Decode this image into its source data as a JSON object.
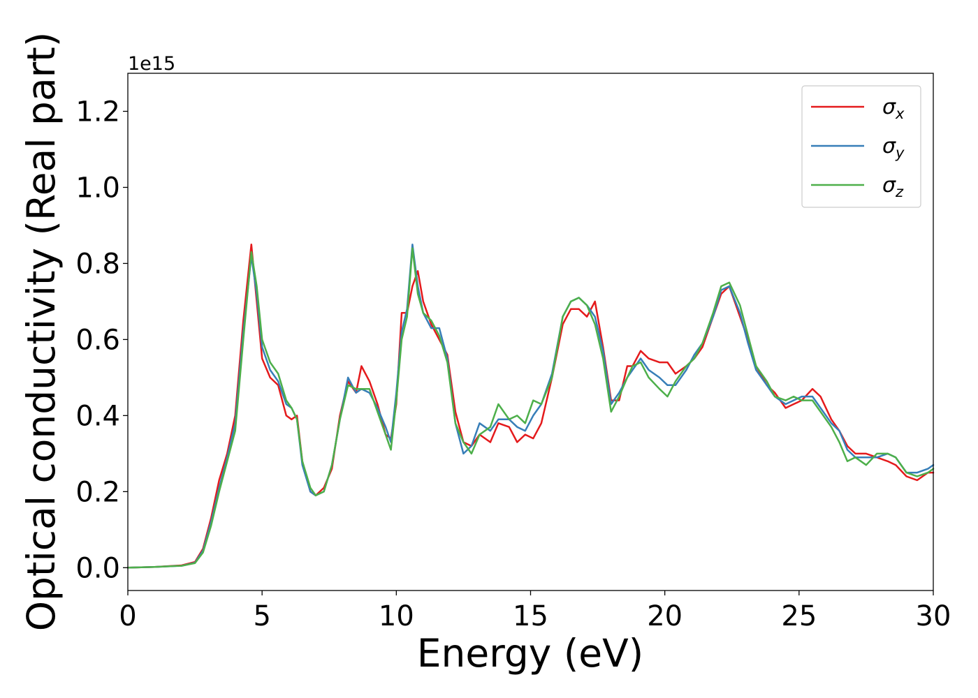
{
  "chart_data": {
    "type": "line",
    "xlabel": "Energy (eV)",
    "ylabel": "Optical conductivity (Real part)",
    "y_offset_label": "1e15",
    "xlim": [
      0,
      30
    ],
    "ylim": [
      -0.06,
      1.3
    ],
    "xticks": [
      0,
      5,
      10,
      15,
      20,
      25,
      30
    ],
    "xtick_labels": [
      "0",
      "5",
      "10",
      "15",
      "20",
      "25",
      "30"
    ],
    "yticks": [
      0.0,
      0.2,
      0.4,
      0.6,
      0.8,
      1.0,
      1.2
    ],
    "ytick_labels": [
      "0.0",
      "0.2",
      "0.4",
      "0.6",
      "0.8",
      "1.0",
      "1.2"
    ],
    "grid": false,
    "legend_position": "top-right",
    "series": [
      {
        "name": "σx",
        "symbol": "σ",
        "subscript": "x",
        "color": "#e41a1c",
        "x": [
          0,
          1,
          2,
          2.5,
          2.8,
          3.1,
          3.4,
          3.7,
          4.0,
          4.3,
          4.6,
          4.8,
          5.0,
          5.3,
          5.6,
          5.9,
          6.1,
          6.3,
          6.5,
          6.8,
          7.0,
          7.3,
          7.6,
          7.9,
          8.2,
          8.5,
          8.7,
          9.0,
          9.3,
          9.6,
          9.8,
          10.0,
          10.2,
          10.4,
          10.6,
          10.8,
          11.0,
          11.3,
          11.6,
          11.9,
          12.2,
          12.5,
          12.8,
          13.1,
          13.5,
          13.8,
          14.2,
          14.5,
          14.8,
          15.1,
          15.4,
          15.8,
          16.2,
          16.5,
          16.8,
          17.1,
          17.4,
          17.7,
          18.0,
          18.3,
          18.6,
          18.8,
          19.1,
          19.4,
          19.8,
          20.1,
          20.4,
          20.8,
          21.1,
          21.4,
          21.8,
          22.1,
          22.4,
          22.8,
          23.1,
          23.4,
          23.8,
          24.1,
          24.5,
          24.8,
          25.1,
          25.5,
          25.8,
          26.2,
          26.5,
          26.8,
          27.1,
          27.5,
          27.9,
          28.3,
          28.6,
          29.0,
          29.4,
          29.8,
          30.0
        ],
        "y": [
          0.0,
          0.002,
          0.006,
          0.015,
          0.05,
          0.13,
          0.23,
          0.3,
          0.4,
          0.65,
          0.85,
          0.7,
          0.55,
          0.5,
          0.48,
          0.4,
          0.39,
          0.4,
          0.28,
          0.2,
          0.19,
          0.21,
          0.26,
          0.4,
          0.49,
          0.46,
          0.53,
          0.49,
          0.43,
          0.35,
          0.34,
          0.43,
          0.67,
          0.67,
          0.74,
          0.78,
          0.7,
          0.64,
          0.6,
          0.56,
          0.41,
          0.33,
          0.32,
          0.35,
          0.33,
          0.38,
          0.37,
          0.33,
          0.35,
          0.34,
          0.38,
          0.5,
          0.64,
          0.68,
          0.68,
          0.66,
          0.7,
          0.58,
          0.44,
          0.44,
          0.53,
          0.53,
          0.57,
          0.55,
          0.54,
          0.54,
          0.51,
          0.53,
          0.55,
          0.58,
          0.66,
          0.72,
          0.74,
          0.66,
          0.6,
          0.53,
          0.48,
          0.46,
          0.42,
          0.43,
          0.44,
          0.47,
          0.45,
          0.39,
          0.36,
          0.32,
          0.3,
          0.3,
          0.29,
          0.28,
          0.27,
          0.24,
          0.23,
          0.25,
          0.25
        ]
      },
      {
        "name": "σy",
        "symbol": "σ",
        "subscript": "y",
        "color": "#377eb8",
        "x": [
          0,
          1,
          2,
          2.5,
          2.8,
          3.1,
          3.4,
          3.7,
          4.0,
          4.3,
          4.6,
          4.8,
          5.0,
          5.3,
          5.6,
          5.9,
          6.1,
          6.3,
          6.5,
          6.8,
          7.0,
          7.3,
          7.6,
          7.9,
          8.2,
          8.5,
          8.7,
          9.0,
          9.3,
          9.6,
          9.8,
          10.0,
          10.2,
          10.4,
          10.6,
          10.8,
          11.0,
          11.3,
          11.6,
          11.9,
          12.2,
          12.5,
          12.8,
          13.1,
          13.5,
          13.8,
          14.2,
          14.5,
          14.8,
          15.1,
          15.4,
          15.8,
          16.2,
          16.5,
          16.8,
          17.1,
          17.4,
          17.7,
          18.0,
          18.3,
          18.6,
          18.8,
          19.1,
          19.4,
          19.8,
          20.1,
          20.4,
          20.8,
          21.1,
          21.4,
          21.8,
          22.1,
          22.4,
          22.8,
          23.1,
          23.4,
          23.8,
          24.1,
          24.5,
          24.8,
          25.1,
          25.5,
          25.8,
          26.2,
          26.5,
          26.8,
          27.1,
          27.5,
          27.9,
          28.3,
          28.6,
          29.0,
          29.4,
          29.8,
          30.0
        ],
        "y": [
          0.0,
          0.002,
          0.005,
          0.013,
          0.045,
          0.12,
          0.21,
          0.29,
          0.38,
          0.62,
          0.82,
          0.72,
          0.58,
          0.52,
          0.49,
          0.43,
          0.42,
          0.39,
          0.27,
          0.2,
          0.19,
          0.2,
          0.27,
          0.39,
          0.5,
          0.46,
          0.47,
          0.46,
          0.42,
          0.37,
          0.33,
          0.46,
          0.62,
          0.68,
          0.85,
          0.74,
          0.67,
          0.63,
          0.63,
          0.55,
          0.38,
          0.3,
          0.32,
          0.38,
          0.36,
          0.39,
          0.39,
          0.37,
          0.36,
          0.4,
          0.43,
          0.51,
          0.66,
          0.7,
          0.71,
          0.69,
          0.66,
          0.57,
          0.43,
          0.46,
          0.5,
          0.52,
          0.55,
          0.52,
          0.5,
          0.48,
          0.48,
          0.52,
          0.56,
          0.59,
          0.66,
          0.73,
          0.74,
          0.67,
          0.59,
          0.52,
          0.48,
          0.45,
          0.43,
          0.44,
          0.45,
          0.45,
          0.42,
          0.38,
          0.36,
          0.31,
          0.29,
          0.29,
          0.29,
          0.3,
          0.29,
          0.25,
          0.25,
          0.26,
          0.27
        ]
      },
      {
        "name": "σz",
        "symbol": "σ",
        "subscript": "z",
        "color": "#4daf4a",
        "x": [
          0,
          1,
          2,
          2.5,
          2.8,
          3.1,
          3.4,
          3.7,
          4.0,
          4.3,
          4.6,
          4.8,
          5.0,
          5.3,
          5.6,
          5.9,
          6.1,
          6.3,
          6.5,
          6.8,
          7.0,
          7.3,
          7.6,
          7.9,
          8.2,
          8.5,
          8.7,
          9.0,
          9.3,
          9.6,
          9.8,
          10.0,
          10.2,
          10.4,
          10.6,
          10.8,
          11.0,
          11.3,
          11.6,
          11.9,
          12.2,
          12.5,
          12.8,
          13.1,
          13.5,
          13.8,
          14.2,
          14.5,
          14.8,
          15.1,
          15.4,
          15.8,
          16.2,
          16.5,
          16.8,
          17.1,
          17.4,
          17.7,
          18.0,
          18.3,
          18.6,
          18.8,
          19.1,
          19.4,
          19.8,
          20.1,
          20.4,
          20.8,
          21.1,
          21.4,
          21.8,
          22.1,
          22.4,
          22.8,
          23.1,
          23.4,
          23.8,
          24.1,
          24.5,
          24.8,
          25.1,
          25.5,
          25.8,
          26.2,
          26.5,
          26.8,
          27.1,
          27.5,
          27.9,
          28.3,
          28.6,
          29.0,
          29.4,
          29.8,
          30.0
        ],
        "y": [
          0.0,
          0.002,
          0.005,
          0.012,
          0.04,
          0.11,
          0.2,
          0.28,
          0.36,
          0.6,
          0.83,
          0.74,
          0.6,
          0.54,
          0.51,
          0.44,
          0.42,
          0.39,
          0.28,
          0.21,
          0.19,
          0.2,
          0.27,
          0.39,
          0.48,
          0.47,
          0.47,
          0.47,
          0.41,
          0.35,
          0.31,
          0.44,
          0.6,
          0.66,
          0.84,
          0.72,
          0.67,
          0.65,
          0.61,
          0.54,
          0.38,
          0.33,
          0.3,
          0.35,
          0.37,
          0.43,
          0.39,
          0.4,
          0.38,
          0.44,
          0.43,
          0.5,
          0.66,
          0.7,
          0.71,
          0.69,
          0.64,
          0.55,
          0.41,
          0.45,
          0.5,
          0.53,
          0.54,
          0.5,
          0.47,
          0.45,
          0.49,
          0.53,
          0.55,
          0.59,
          0.67,
          0.74,
          0.75,
          0.69,
          0.61,
          0.53,
          0.49,
          0.45,
          0.44,
          0.45,
          0.44,
          0.44,
          0.41,
          0.37,
          0.33,
          0.28,
          0.29,
          0.27,
          0.3,
          0.3,
          0.29,
          0.25,
          0.24,
          0.25,
          0.26
        ]
      }
    ]
  }
}
